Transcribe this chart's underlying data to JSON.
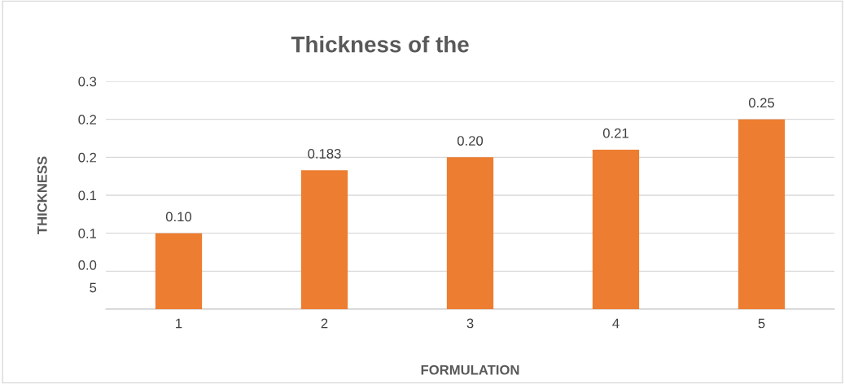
{
  "chart_data": {
    "type": "bar",
    "title": "Thickness of the",
    "xlabel": "FORMULATION",
    "ylabel": "THICKNESS",
    "categories": [
      "1",
      "2",
      "3",
      "4",
      "5"
    ],
    "values": [
      0.1,
      0.183,
      0.2,
      0.21,
      0.25
    ],
    "value_labels": [
      "0.10",
      "0.183",
      "0.20",
      "0.21",
      "0.25"
    ],
    "color": "#ed7d31",
    "ylim": [
      0,
      0.3
    ],
    "yticks": [
      {
        "value": 0,
        "label": null
      },
      {
        "value": 0.05,
        "label": "0.0\n5"
      },
      {
        "value": 0.1,
        "label": "0.1"
      },
      {
        "value": 0.15,
        "label": "0.1"
      },
      {
        "value": 0.2,
        "label": "0.2"
      },
      {
        "value": 0.25,
        "label": "0.2"
      },
      {
        "value": 0.3,
        "label": "0.3"
      }
    ],
    "grid": "y"
  }
}
